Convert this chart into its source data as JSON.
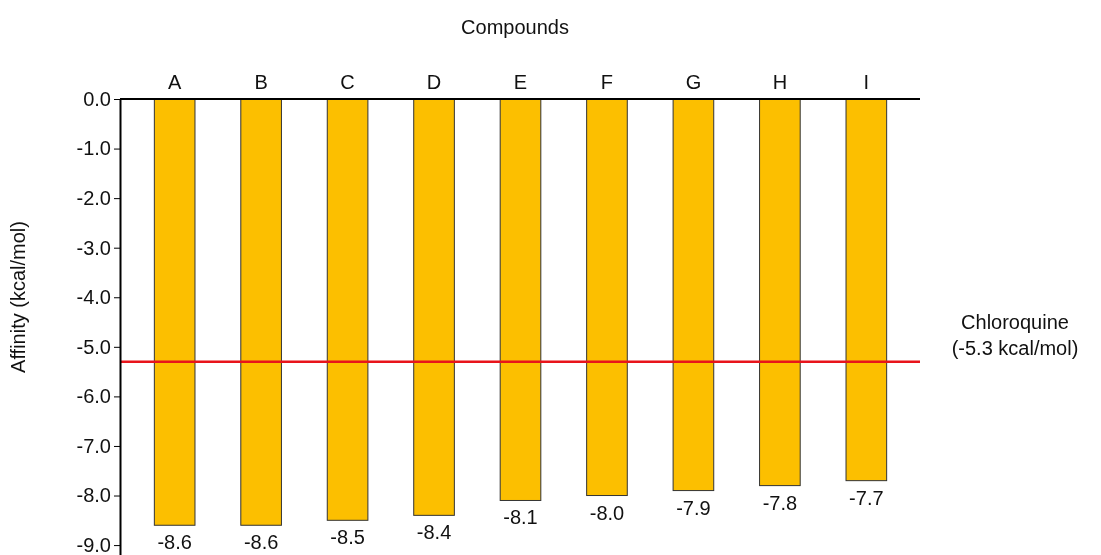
{
  "chart_data": {
    "type": "bar",
    "xlabel": "Compounds",
    "ylabel": "Affinity (kcal/mol)",
    "categories": [
      "A",
      "B",
      "C",
      "D",
      "E",
      "F",
      "G",
      "H",
      "I"
    ],
    "values": [
      -8.6,
      -8.6,
      -8.5,
      -8.4,
      -8.1,
      -8.0,
      -7.9,
      -7.8,
      -7.7
    ],
    "value_labels": [
      "-8.6",
      "-8.6",
      "-8.5",
      "-8.4",
      "-8.1",
      "-8.0",
      "-7.9",
      "-7.8",
      "-7.7"
    ],
    "color": "#fcbf00",
    "ylim": [
      -9.2,
      0
    ],
    "yticks": [
      {
        "value": 0,
        "label": "0.0"
      },
      {
        "value": -1,
        "label": "-1.0"
      },
      {
        "value": -2,
        "label": "-2.0"
      },
      {
        "value": -3,
        "label": "-3.0"
      },
      {
        "value": -4,
        "label": "-4.0"
      },
      {
        "value": -5,
        "label": "-5.0"
      },
      {
        "value": -6,
        "label": "-6.0"
      },
      {
        "value": -7,
        "label": "-7.0"
      },
      {
        "value": -8,
        "label": "-8.0"
      },
      {
        "value": -9,
        "label": "-9.0"
      }
    ],
    "ref_lines": [
      {
        "axis": "y",
        "value": -5.3,
        "label": "Chloroquine (-5.3 kcal/mol)",
        "color": "#e8141b"
      }
    ],
    "grid": false
  }
}
